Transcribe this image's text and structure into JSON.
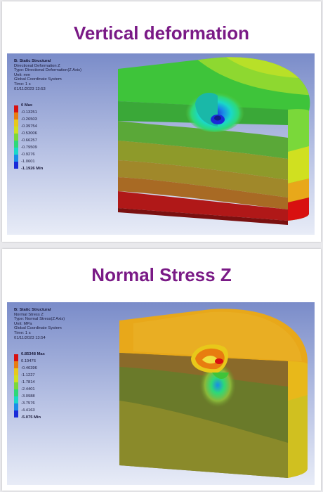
{
  "panels": [
    {
      "heading": "Vertical deformation",
      "info": {
        "title": "B: Static Structural",
        "result": "Directional Deformation Z",
        "type": "Type: Directional Deformation(Z Axis)",
        "unit": "Unit: mm",
        "system": "Global Coordinate System",
        "time": "Time: 1 s",
        "date": "01/11/2023 13:53"
      },
      "legend": [
        {
          "label": "0 Max",
          "color": "#d81010",
          "strong": true
        },
        {
          "label": "-0.13251",
          "color": "#e87c10",
          "strong": false
        },
        {
          "label": "-0.26503",
          "color": "#e8c81a",
          "strong": false
        },
        {
          "label": "-0.39754",
          "color": "#d0e020",
          "strong": false
        },
        {
          "label": "-0.53006",
          "color": "#7ad83a",
          "strong": false
        },
        {
          "label": "-0.66257",
          "color": "#2ed878",
          "strong": false
        },
        {
          "label": "-0.79509",
          "color": "#1ad8c8",
          "strong": false
        },
        {
          "label": "-0.9276",
          "color": "#1a8ce8",
          "strong": false
        },
        {
          "label": "-1.0601",
          "color": "#1a2ad8",
          "strong": false
        }
      ],
      "legend_min": "-1.1926 Min"
    },
    {
      "heading": "Normal Stress Z",
      "info": {
        "title": "B: Static Structural",
        "result": "Normal Stress Z",
        "type": "Type: Normal Stress(Z Axis)",
        "unit": "Unit: MPa",
        "system": "Global Coordinate System",
        "time": "Time: 1 s",
        "date": "01/11/2023 13:54"
      },
      "legend": [
        {
          "label": "0.85348 Max",
          "color": "#d81010",
          "strong": true
        },
        {
          "label": "0.19476",
          "color": "#e87c10",
          "strong": false
        },
        {
          "label": "-0.46396",
          "color": "#e8c81a",
          "strong": false
        },
        {
          "label": "-1.1227",
          "color": "#d0e020",
          "strong": false
        },
        {
          "label": "-1.7814",
          "color": "#7ad83a",
          "strong": false
        },
        {
          "label": "-2.4401",
          "color": "#2ed878",
          "strong": false
        },
        {
          "label": "-3.0988",
          "color": "#1ad8c8",
          "strong": false
        },
        {
          "label": "-3.7576",
          "color": "#1a8ce8",
          "strong": false
        },
        {
          "label": "-4.4163",
          "color": "#1a2ad8",
          "strong": false
        }
      ],
      "legend_min": "-5.075 Min"
    }
  ]
}
